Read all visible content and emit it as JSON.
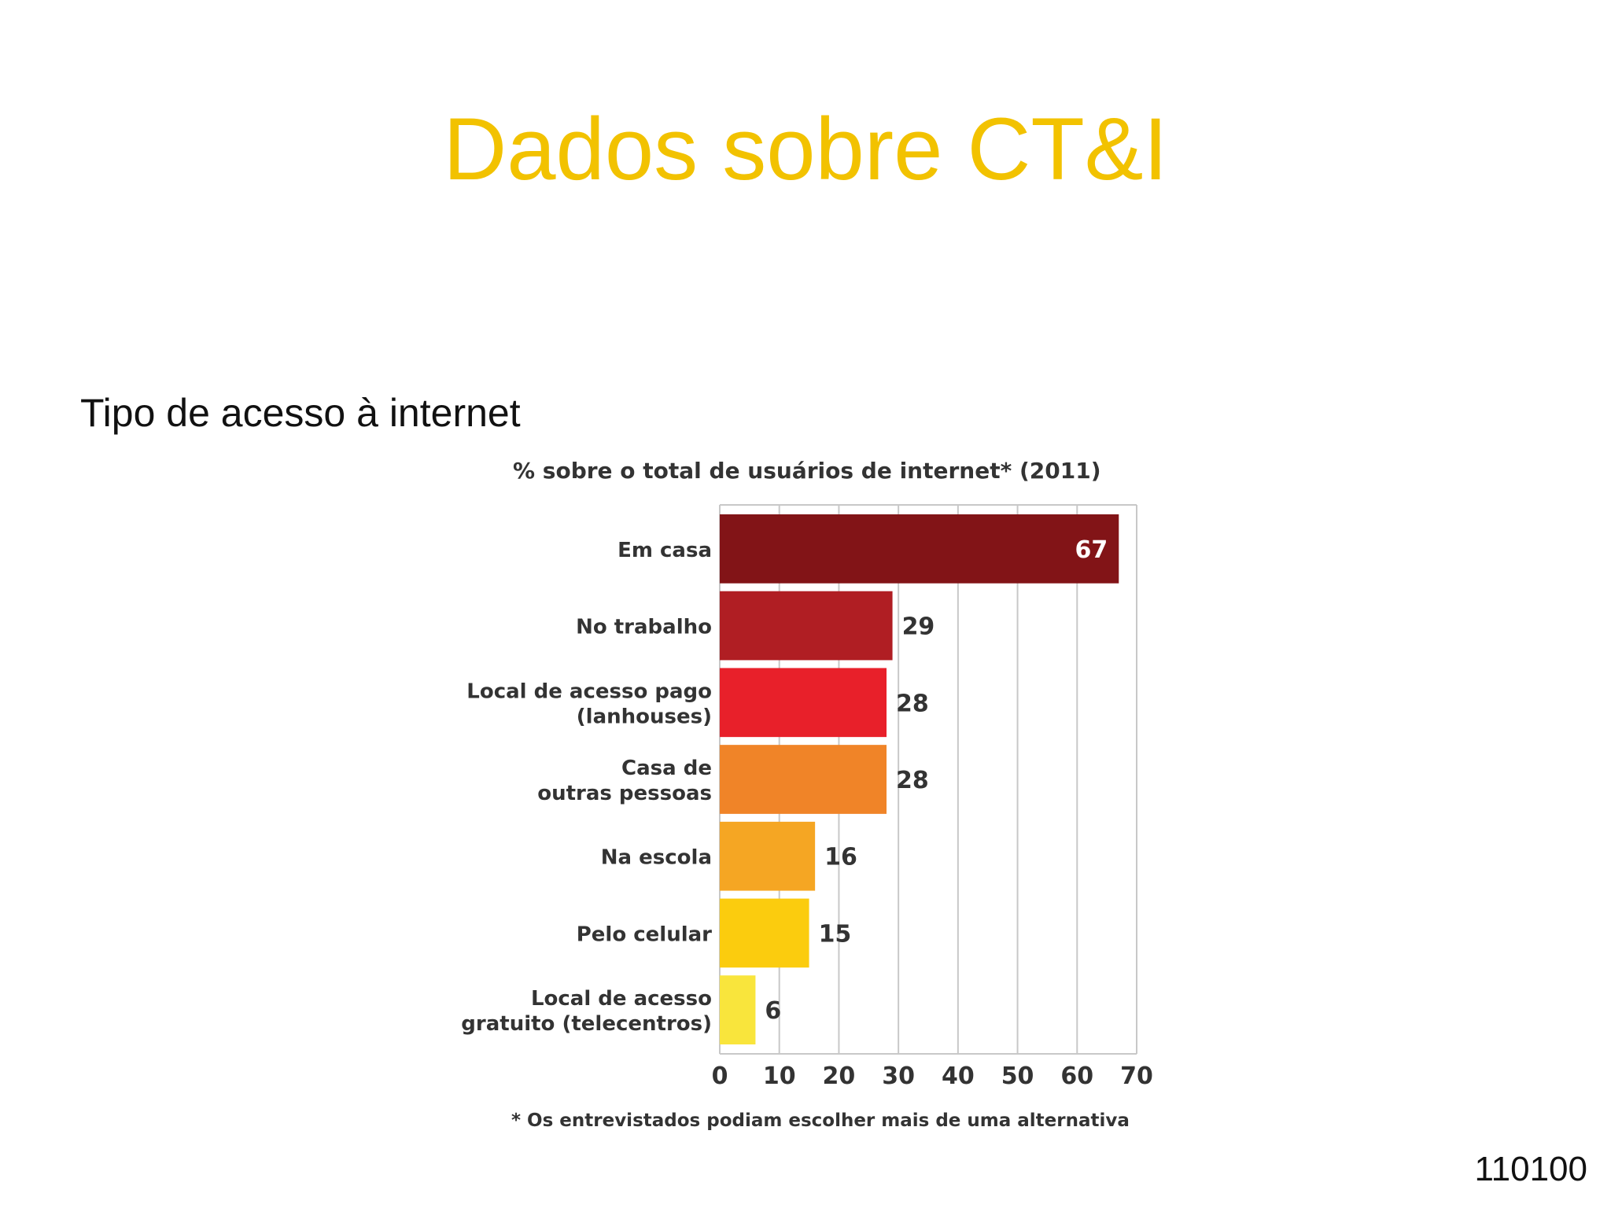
{
  "slide": {
    "title": "Dados sobre CT&I",
    "subtitle": "Tipo de acesso à internet",
    "page_number": "110100"
  },
  "chart_data": {
    "type": "bar",
    "orientation": "horizontal",
    "title": "% sobre o total de usuários de internet* (2011)",
    "footnote": "* Os entrevistados podiam escolher mais de uma alternativa",
    "categories": [
      [
        "Em casa"
      ],
      [
        "No trabalho"
      ],
      [
        "Local de acesso pago",
        "(lanhouses)"
      ],
      [
        "Casa de",
        "outras pessoas"
      ],
      [
        "Na escola"
      ],
      [
        "Pelo celular"
      ],
      [
        "Local de acesso",
        "gratuito (telecentros)"
      ]
    ],
    "values": [
      67,
      29,
      28,
      28,
      16,
      15,
      6
    ],
    "value_labels": [
      "67",
      "29",
      "28",
      "28",
      "16",
      "15",
      "6"
    ],
    "bar_colors": [
      "#821417",
      "#b01e23",
      "#e8202a",
      "#f08428",
      "#f5a623",
      "#fbcc0e",
      "#f9e53c"
    ],
    "xlim": [
      0,
      70
    ],
    "xticks": [
      0,
      10,
      20,
      30,
      40,
      50,
      60,
      70
    ],
    "xtick_labels": [
      "0",
      "10",
      "20",
      "30",
      "40",
      "50",
      "60",
      "70"
    ],
    "grid": true,
    "label_inside_first_bar": true
  }
}
